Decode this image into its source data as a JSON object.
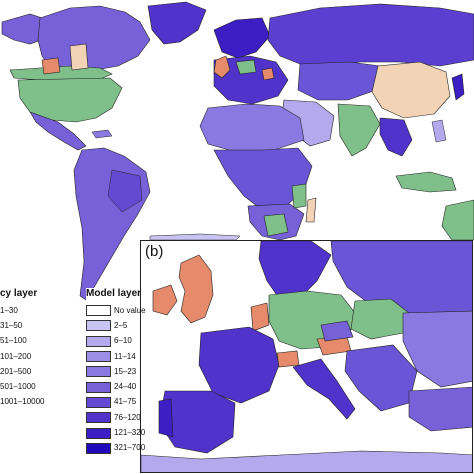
{
  "panel_label": "(b)",
  "legend_left": {
    "title": "cy layer",
    "items": [
      {
        "label": "1–30"
      },
      {
        "label": "31–50"
      },
      {
        "label": "51–100"
      },
      {
        "label": "101–200"
      },
      {
        "label": "201–500"
      },
      {
        "label": "501–1000"
      },
      {
        "label": "1001–10000"
      }
    ]
  },
  "legend_right": {
    "title": "Model layer",
    "items": [
      {
        "label": "No value",
        "color": "#ffffff"
      },
      {
        "label": "2–5",
        "color": "#c9c3f2"
      },
      {
        "label": "6–10",
        "color": "#b3a9ec"
      },
      {
        "label": "11–14",
        "color": "#9d8fe6"
      },
      {
        "label": "15–23",
        "color": "#8a79e0"
      },
      {
        "label": "24–40",
        "color": "#7761d8"
      },
      {
        "label": "41–75",
        "color": "#644ad2"
      },
      {
        "label": "76–120",
        "color": "#4f33cb"
      },
      {
        "label": "121–320",
        "color": "#3b1ec4"
      },
      {
        "label": "321–700",
        "color": "#2208bb"
      }
    ]
  },
  "colors": {
    "ocean": "#ffffff",
    "land_main": "#6a55d6",
    "land_light": "#b3a9ec",
    "land_dark": "#3b1ec4",
    "green_layer": "#7fbf8a",
    "peach_layer": "#f3d3b5",
    "orange_layer": "#e58a6a",
    "border": "#222222"
  }
}
